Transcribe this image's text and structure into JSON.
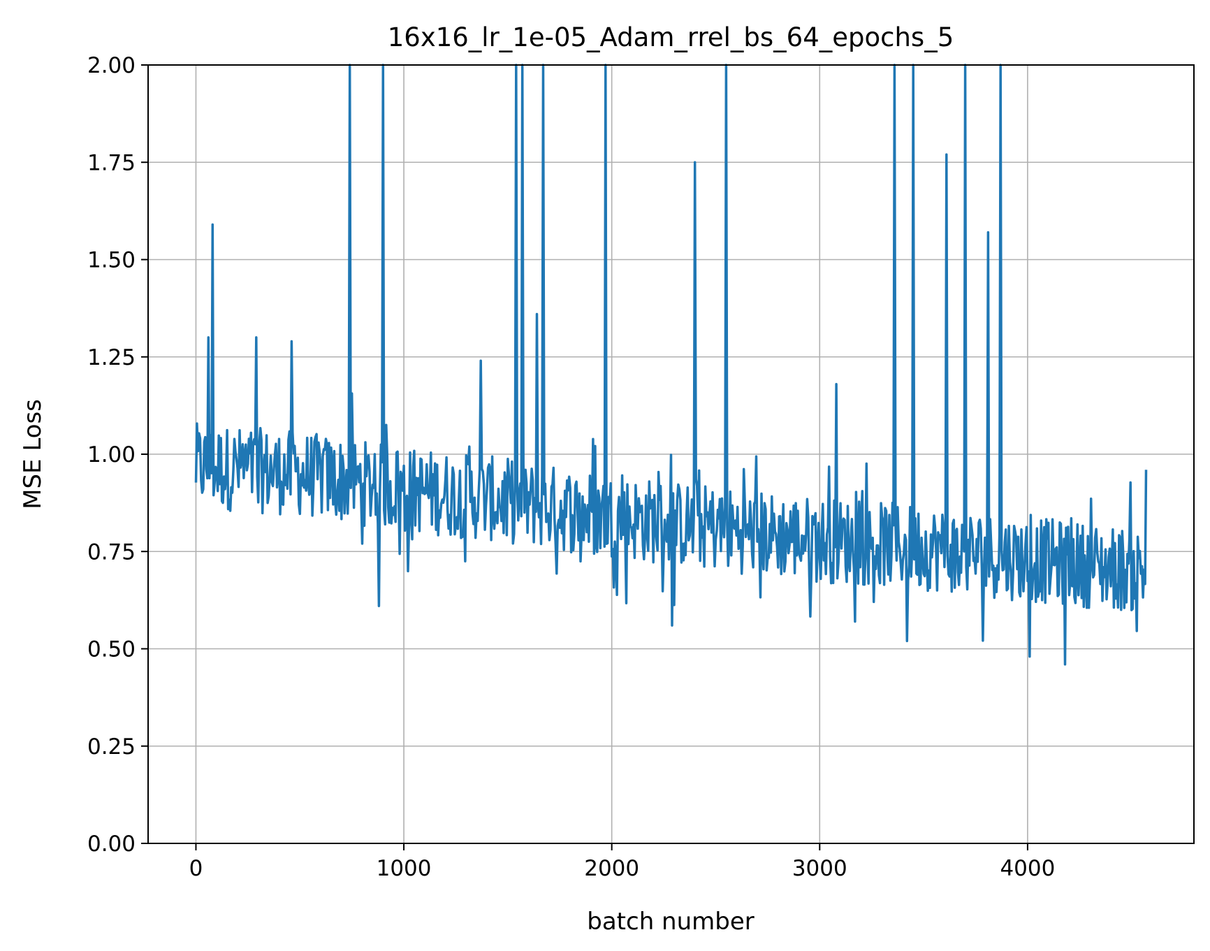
{
  "chart_data": {
    "type": "line",
    "title": "16x16_lr_1e-05_Adam_rrel_bs_64_epochs_5",
    "xlabel": "batch number",
    "ylabel": "MSE Loss",
    "xlim": [
      -230,
      4800
    ],
    "ylim": [
      0.0,
      2.0
    ],
    "grid": true,
    "x_ticks": [
      0,
      1000,
      2000,
      3000,
      4000
    ],
    "x_tick_labels": [
      "0",
      "1000",
      "2000",
      "3000",
      "4000"
    ],
    "y_ticks": [
      0.0,
      0.25,
      0.5,
      0.75,
      1.0,
      1.25,
      1.5,
      1.75,
      2.0
    ],
    "y_tick_labels": [
      "0.00",
      "0.25",
      "0.50",
      "0.75",
      "1.00",
      "1.25",
      "1.50",
      "1.75",
      "2.00"
    ],
    "line_color": "#1f77b4",
    "series": [
      {
        "x_start": 0,
        "x_end": 4570,
        "trend": [
          [
            0,
            0.97
          ],
          [
            500,
            0.95
          ],
          [
            1000,
            0.91
          ],
          [
            1500,
            0.88
          ],
          [
            2000,
            0.84
          ],
          [
            2500,
            0.81
          ],
          [
            3000,
            0.78
          ],
          [
            3500,
            0.76
          ],
          [
            4000,
            0.73
          ],
          [
            4570,
            0.7
          ]
        ],
        "spikes": [
          [
            80,
            1.59
          ],
          [
            60,
            1.3
          ],
          [
            290,
            1.3
          ],
          [
            460,
            1.29
          ],
          [
            740,
            2.0
          ],
          [
            900,
            2.0
          ],
          [
            1370,
            1.24
          ],
          [
            1540,
            2.0
          ],
          [
            1570,
            2.0
          ],
          [
            1640,
            1.36
          ],
          [
            1670,
            2.0
          ],
          [
            1970,
            2.0
          ],
          [
            2400,
            1.75
          ],
          [
            2550,
            2.0
          ],
          [
            3080,
            1.18
          ],
          [
            3360,
            2.0
          ],
          [
            3450,
            2.0
          ],
          [
            3610,
            1.77
          ],
          [
            3700,
            2.0
          ],
          [
            3810,
            1.57
          ],
          [
            3870,
            2.0
          ],
          [
            4570,
            0.96
          ]
        ],
        "dips": [
          [
            880,
            0.61
          ],
          [
            2290,
            0.56
          ],
          [
            3420,
            0.52
          ],
          [
            4010,
            0.48
          ],
          [
            4180,
            0.46
          ]
        ]
      }
    ]
  }
}
